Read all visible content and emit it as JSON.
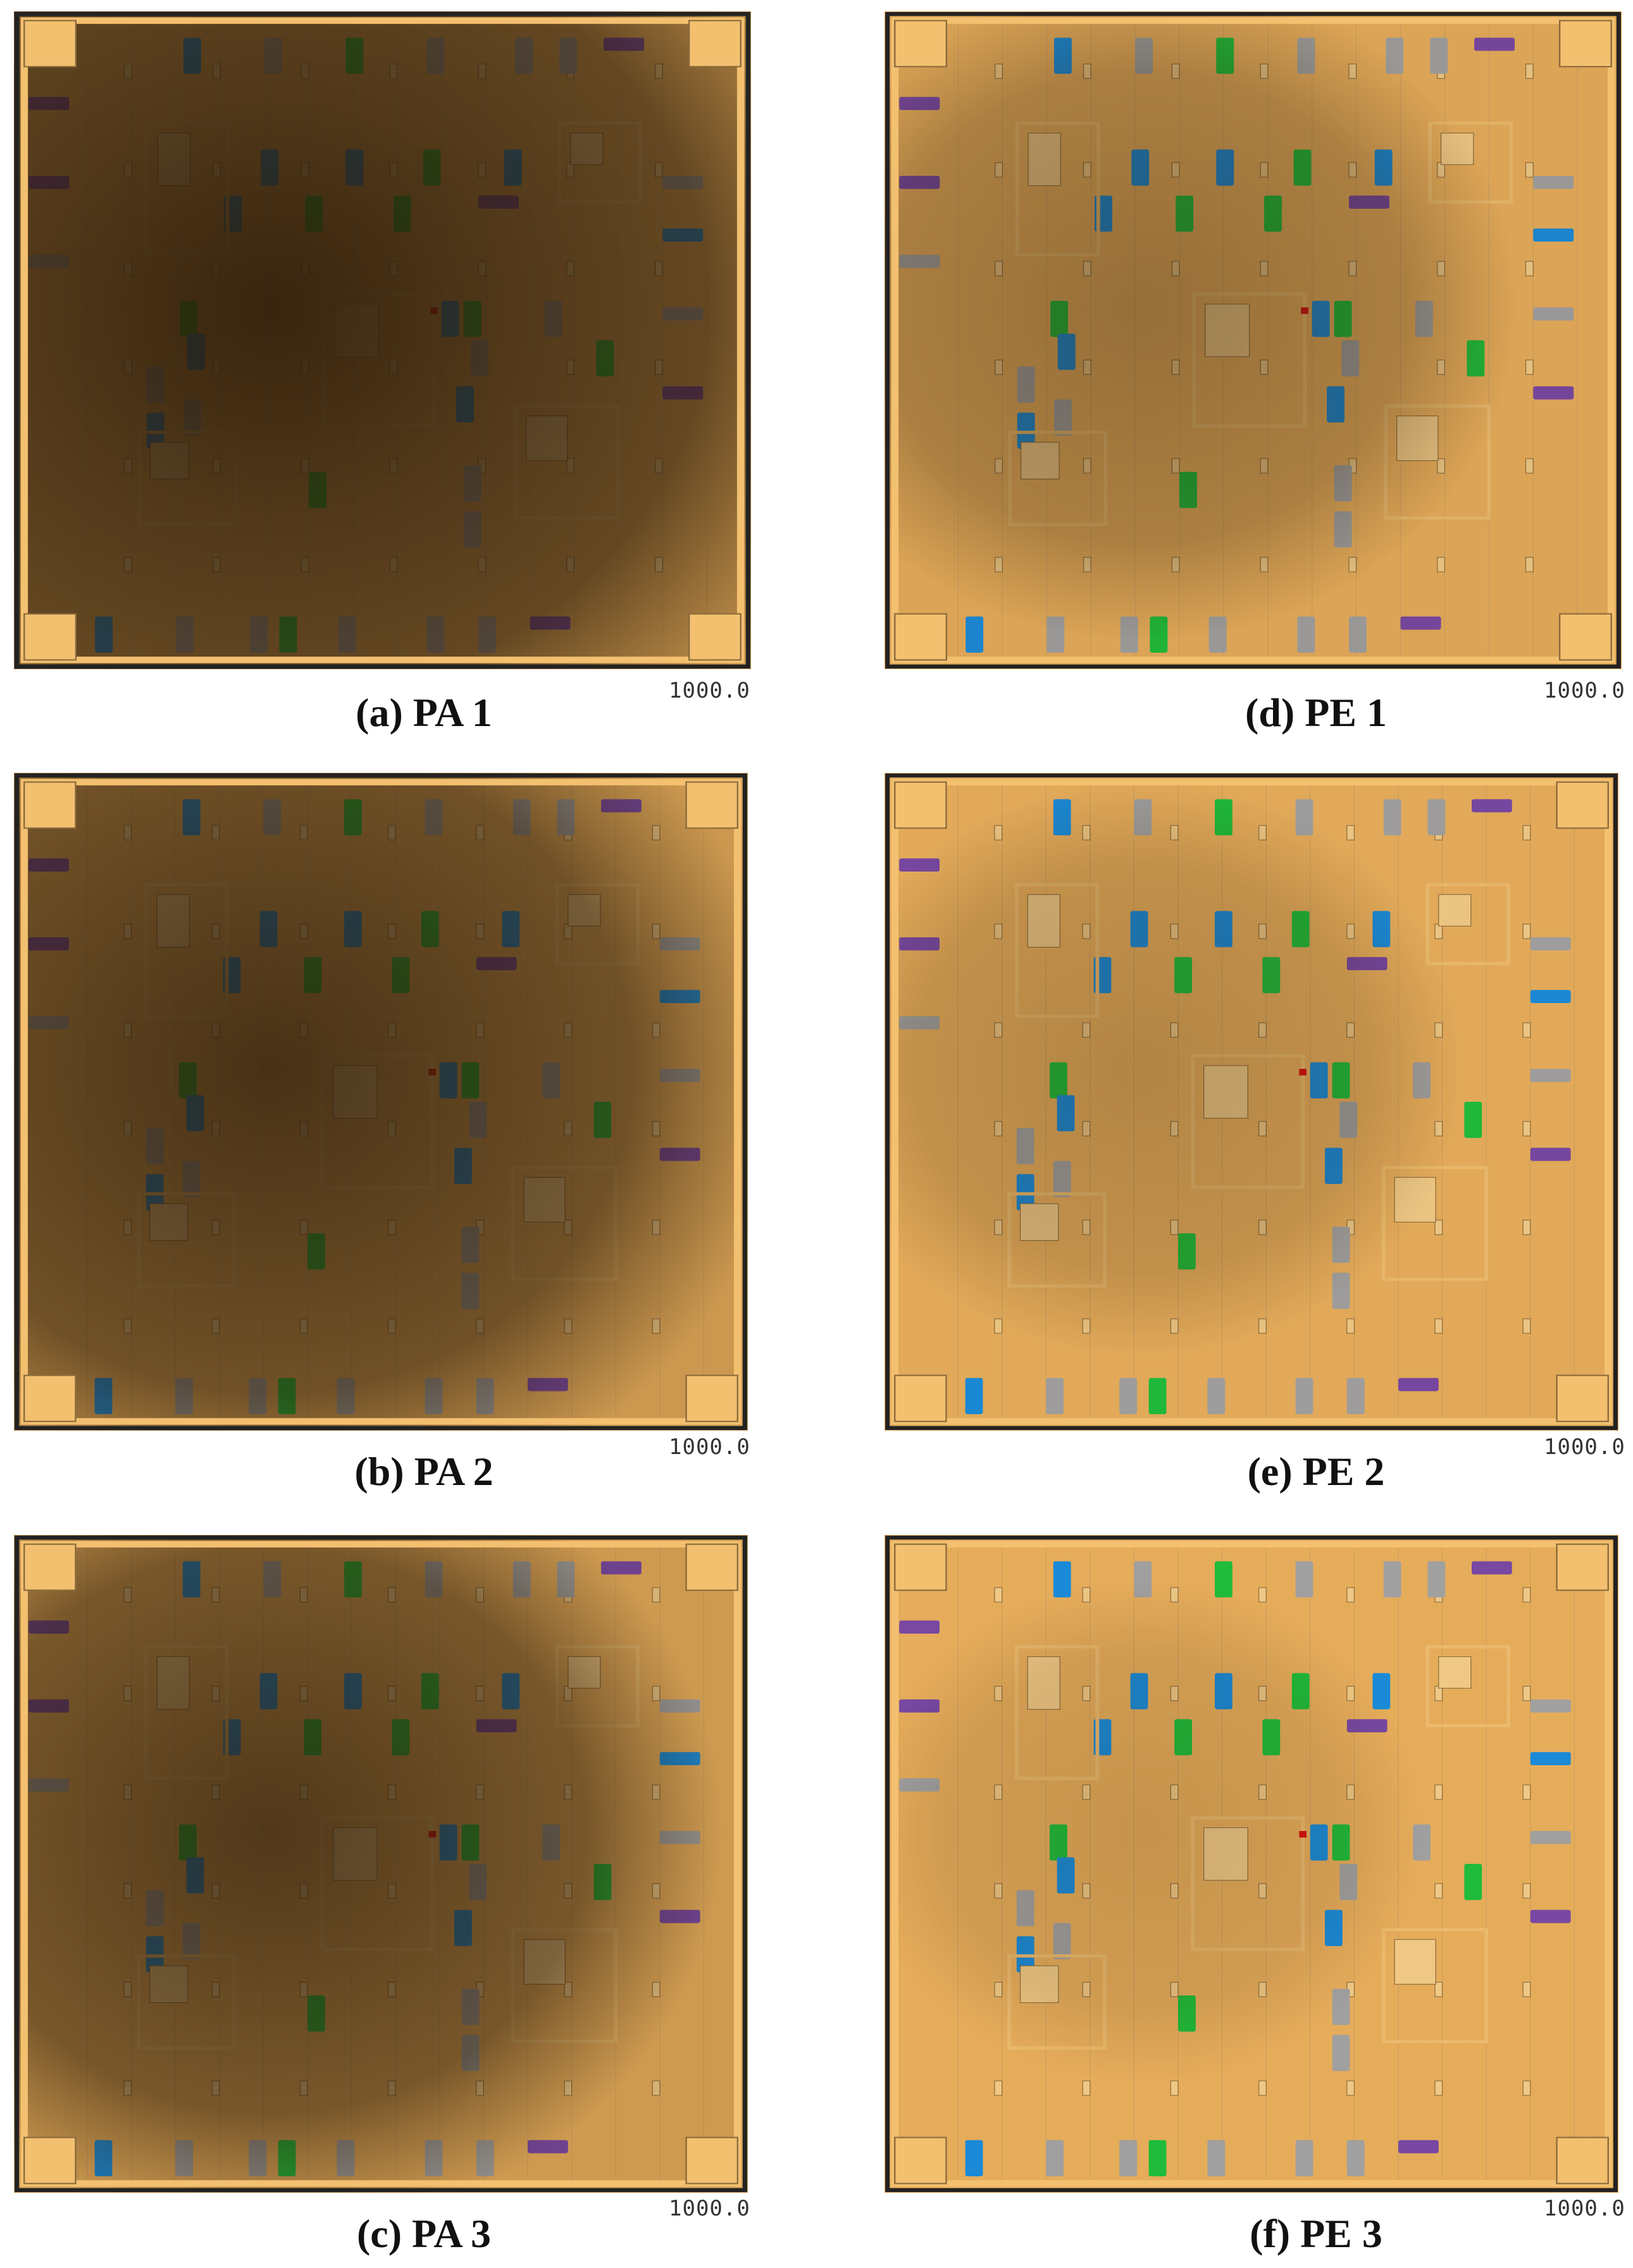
{
  "stamp_value": "1000.0",
  "colors": {
    "floor": "#EDB25E",
    "smoke": "#2a1a08",
    "border": "#f3c070",
    "car_blue": "#1a8fe0",
    "car_green": "#1fc23c",
    "car_gray": "#a5a5a5",
    "car_purple": "#7b4aa8",
    "marker_red": "#e01010"
  },
  "panels": [
    {
      "caption": "(a) PA 1",
      "smoke_density": 0.93,
      "smoke_coverage": 0.78
    },
    {
      "caption": "(b) PA 2",
      "smoke_density": 0.85,
      "smoke_coverage": 0.58
    },
    {
      "caption": "(c) PA 3",
      "smoke_density": 0.8,
      "smoke_coverage": 0.45
    },
    {
      "caption": "(d) PE 1",
      "smoke_density": 0.45,
      "smoke_coverage": 0.3
    },
    {
      "caption": "(e) PE 2",
      "smoke_density": 0.3,
      "smoke_coverage": 0.2
    },
    {
      "caption": "(f) PE 3",
      "smoke_density": 0.2,
      "smoke_coverage": 0.12
    }
  ]
}
